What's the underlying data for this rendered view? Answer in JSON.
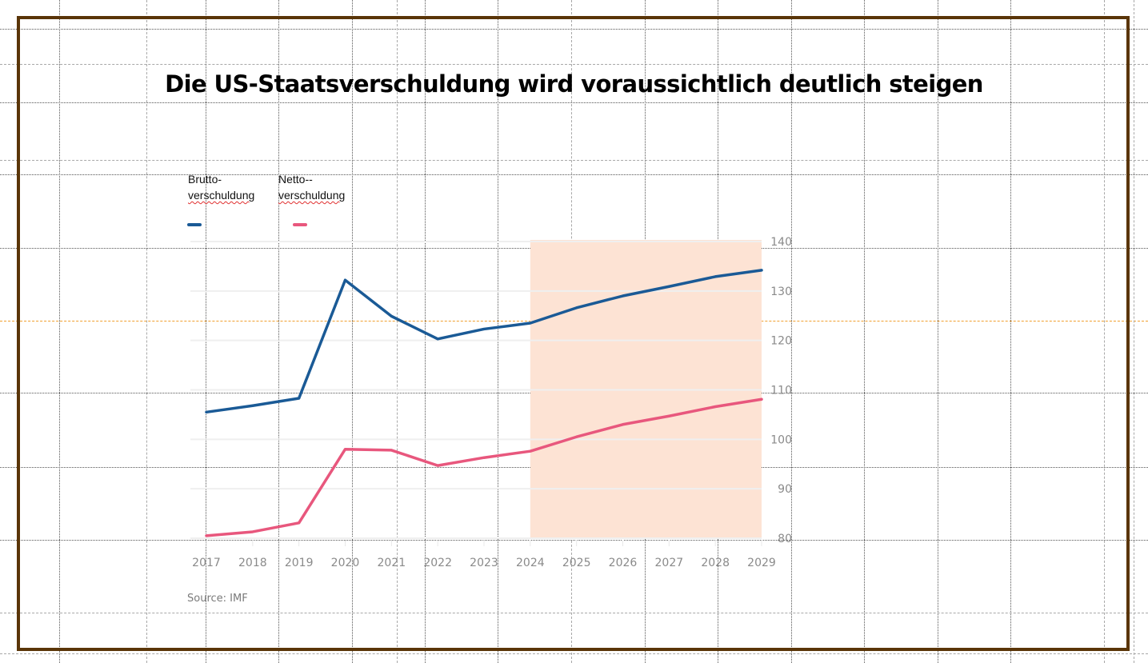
{
  "slide": {
    "title": "Die US-Staatsverschuldung wird voraussichtlich deutlich steigen",
    "frame_color": "#5a3508"
  },
  "legend": [
    {
      "line1": "Brutto-",
      "line2": "verschuldung",
      "color": "#1a5a96"
    },
    {
      "line1": "Netto--",
      "line2": "verschuldung",
      "color": "#e8577d"
    }
  ],
  "chart_data": {
    "type": "line",
    "title": "Die US-Staatsverschuldung wird voraussichtlich deutlich steigen",
    "xlabel": "",
    "ylabel": "",
    "x": [
      2017,
      2018,
      2019,
      2020,
      2021,
      2022,
      2023,
      2024,
      2025,
      2026,
      2027,
      2028,
      2029
    ],
    "x_tick_labels": [
      "2017",
      "2018",
      "2019",
      "2020",
      "2021",
      "2022",
      "2023",
      "2024",
      "2025",
      "2026",
      "2027",
      "2028",
      "2029"
    ],
    "ylim": [
      80,
      140
    ],
    "y_ticks": [
      80,
      90,
      100,
      110,
      120,
      130,
      140
    ],
    "y_tick_labels": [
      "80",
      "90",
      "100",
      "110",
      "120",
      "130",
      "140"
    ],
    "y_axis_side": "right",
    "grid": true,
    "legend_position": "top-left",
    "forecast_band": {
      "from": 2024,
      "to": 2029,
      "color": "#fde3d4"
    },
    "series": [
      {
        "name": "Brutto-verschuldung",
        "color": "#1a5a96",
        "values": [
          105.5,
          106.8,
          108.3,
          132.2,
          124.9,
          120.3,
          122.3,
          123.5,
          126.6,
          129.0,
          130.9,
          132.9,
          134.2
        ]
      },
      {
        "name": "Netto--verschuldung",
        "color": "#e8577d",
        "values": [
          80.5,
          81.3,
          83.1,
          98.0,
          97.8,
          94.7,
          96.3,
          97.6,
          100.5,
          103.0,
          104.7,
          106.6,
          108.1
        ]
      }
    ],
    "source": "Source: IMF"
  }
}
